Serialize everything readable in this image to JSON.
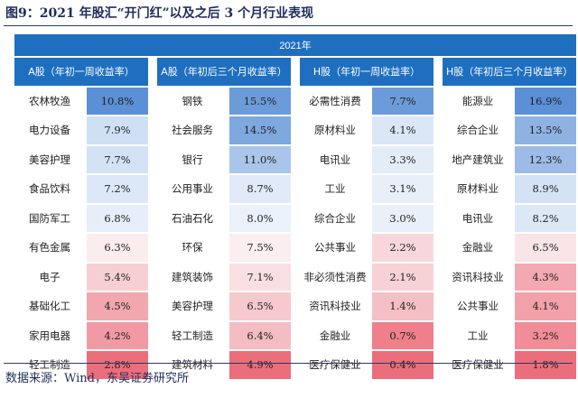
{
  "title": "图9：2021 年股汇“开门红”以及之后 3 个月行业表现",
  "source": "数据来源：Wind，东吴证券研究所",
  "table": {
    "year_label": "2021年",
    "headers": [
      "A股（年初一周收益率）",
      "A股（年初后三个月收益率）",
      "H股（年初一周收益率）",
      "H股（年初后三个月收益率）"
    ],
    "rows": [
      [
        {
          "name": "农林牧渔",
          "value": "10.8%",
          "color": "#5b8fd6"
        },
        {
          "name": "钢铁",
          "value": "15.5%",
          "color": "#6c9bd9"
        },
        {
          "name": "必需性消费",
          "value": "7.7%",
          "color": "#6c9bd9"
        },
        {
          "name": "能源业",
          "value": "16.9%",
          "color": "#5b8fd6"
        }
      ],
      [
        {
          "name": "电力设备",
          "value": "7.9%",
          "color": "#cfe0f4"
        },
        {
          "name": "社会服务",
          "value": "14.5%",
          "color": "#7ea8de"
        },
        {
          "name": "原材料业",
          "value": "4.1%",
          "color": "#dbe7f7"
        },
        {
          "name": "综合企业",
          "value": "13.5%",
          "color": "#8eb2e2"
        }
      ],
      [
        {
          "name": "美容护理",
          "value": "7.7%",
          "color": "#d3e3f5"
        },
        {
          "name": "银行",
          "value": "11.0%",
          "color": "#aac5ea"
        },
        {
          "name": "电讯业",
          "value": "3.3%",
          "color": "#e4ecf8"
        },
        {
          "name": "地产建筑业",
          "value": "12.3%",
          "color": "#9cbbe6"
        }
      ],
      [
        {
          "name": "食品饮料",
          "value": "7.2%",
          "color": "#dce8f7"
        },
        {
          "name": "公用事业",
          "value": "8.7%",
          "color": "#e0eaf8"
        },
        {
          "name": "工业",
          "value": "3.1%",
          "color": "#e8eff9"
        },
        {
          "name": "原材料业",
          "value": "8.9%",
          "color": "#d4e2f5"
        }
      ],
      [
        {
          "name": "国防军工",
          "value": "6.8%",
          "color": "#e6eef9"
        },
        {
          "name": "石油石化",
          "value": "8.0%",
          "color": "#ebf1fa"
        },
        {
          "name": "综合企业",
          "value": "3.0%",
          "color": "#eaf0fa"
        },
        {
          "name": "电讯业",
          "value": "8.2%",
          "color": "#dde8f7"
        }
      ],
      [
        {
          "name": "有色金属",
          "value": "6.3%",
          "color": "#fbecee"
        },
        {
          "name": "环保",
          "value": "7.5%",
          "color": "#fbeef0"
        },
        {
          "name": "公共事业",
          "value": "2.2%",
          "color": "#f7d7db"
        },
        {
          "name": "金融业",
          "value": "6.5%",
          "color": "#f9e4e7"
        }
      ],
      [
        {
          "name": "电子",
          "value": "5.4%",
          "color": "#f6cfd4"
        },
        {
          "name": "建筑装饰",
          "value": "7.1%",
          "color": "#f9dfe2"
        },
        {
          "name": "非必须性消费",
          "value": "2.1%",
          "color": "#f6d2d6"
        },
        {
          "name": "资讯科技业",
          "value": "4.3%",
          "color": "#f3a9b1"
        }
      ],
      [
        {
          "name": "基础化工",
          "value": "4.5%",
          "color": "#f2a6ae"
        },
        {
          "name": "美容护理",
          "value": "6.5%",
          "color": "#f6c9ce"
        },
        {
          "name": "资讯科技业",
          "value": "1.4%",
          "color": "#f4bfc5"
        },
        {
          "name": "公共事业",
          "value": "4.1%",
          "color": "#f2a1aa"
        }
      ],
      [
        {
          "name": "家用电器",
          "value": "4.2%",
          "color": "#f19aa3"
        },
        {
          "name": "轻工制造",
          "value": "6.4%",
          "color": "#f4bdc3"
        },
        {
          "name": "金融业",
          "value": "0.7%",
          "color": "#ee7f8b"
        },
        {
          "name": "工业",
          "value": "3.2%",
          "color": "#f08d97"
        }
      ],
      [
        {
          "name": "轻工制造",
          "value": "2.8%",
          "color": "#ea6e7b"
        },
        {
          "name": "建筑材料",
          "value": "4.9%",
          "color": "#ea6e7b"
        },
        {
          "name": "医疗保健业",
          "value": "0.4%",
          "color": "#ea6e7b"
        },
        {
          "name": "医疗保健业",
          "value": "1.8%",
          "color": "#ea6e7b"
        }
      ]
    ]
  }
}
